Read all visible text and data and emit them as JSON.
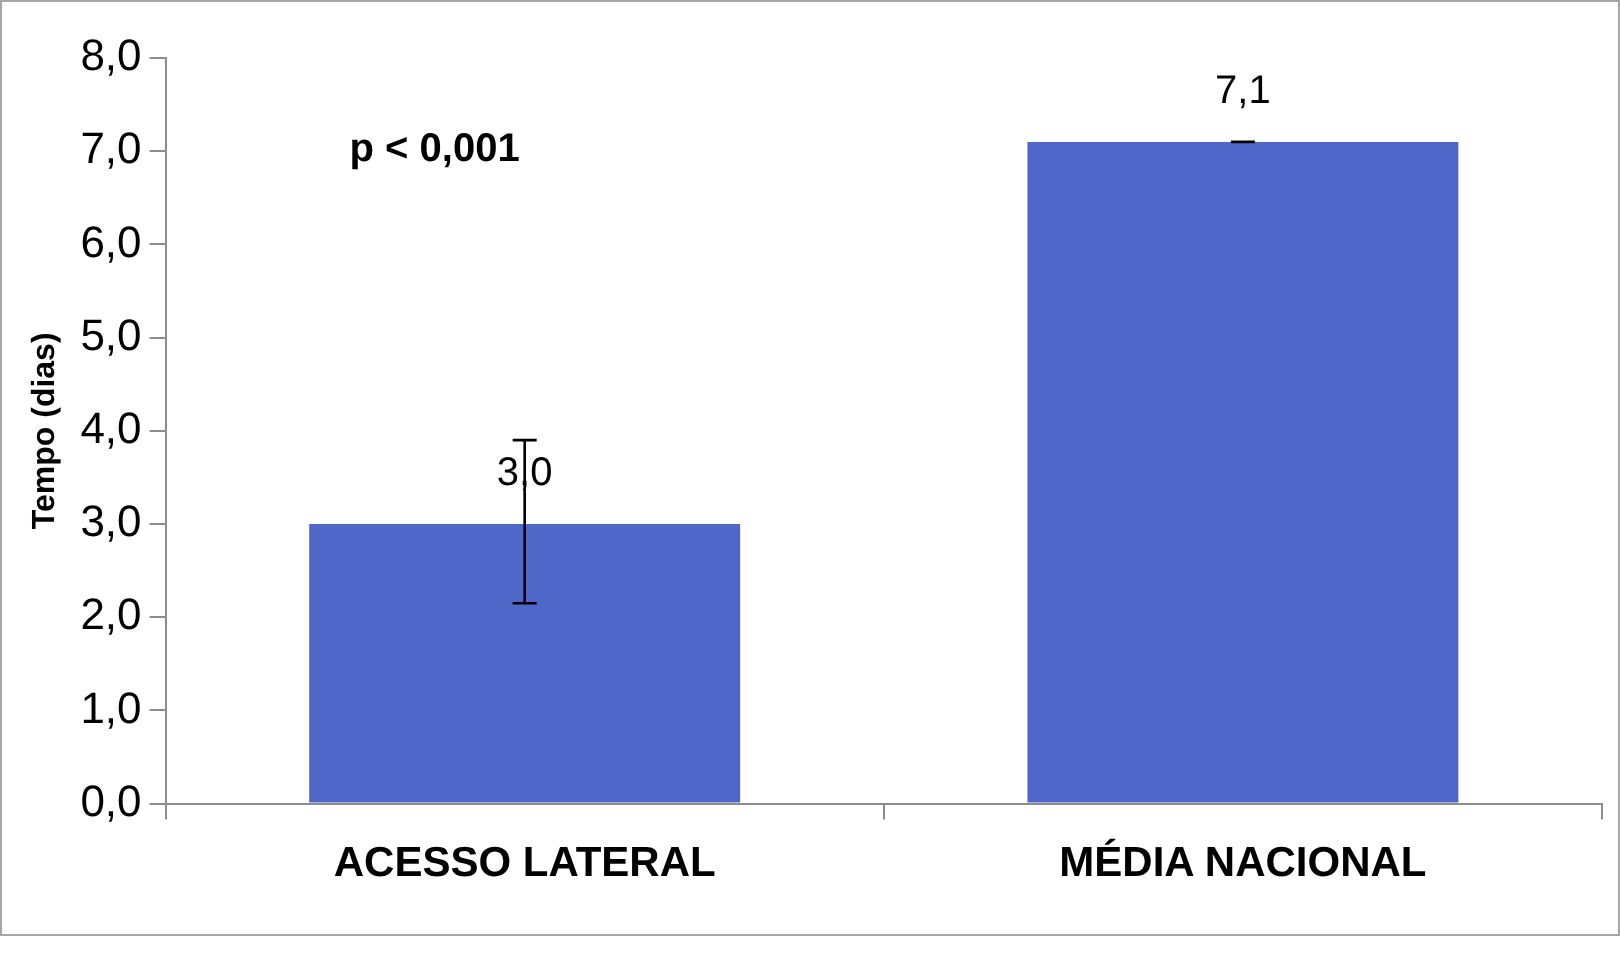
{
  "chart_data": {
    "type": "bar",
    "ylabel": "Tempo (dias)",
    "categories": [
      "ACESSO LATERAL",
      "MÉDIA NACIONAL"
    ],
    "values": [
      3.0,
      7.1
    ],
    "color": "#4f67c8",
    "errors": [
      [
        2.15,
        3.9
      ],
      [
        7.1,
        7.1
      ]
    ],
    "value_labels": [
      "3,0",
      "7,1"
    ],
    "ylim": [
      0,
      8
    ],
    "yticks": [
      {
        "value": 0,
        "label": "0,0"
      },
      {
        "value": 1,
        "label": "1,0"
      },
      {
        "value": 2,
        "label": "2,0"
      },
      {
        "value": 3,
        "label": "3,0"
      },
      {
        "value": 4,
        "label": "4,0"
      },
      {
        "value": 5,
        "label": "5,0"
      },
      {
        "value": 6,
        "label": "6,0"
      },
      {
        "value": 7,
        "label": "7,0"
      },
      {
        "value": 8,
        "label": "8,0"
      }
    ],
    "annotations": [
      "p < 0,001"
    ],
    "grid": false,
    "legend": false
  }
}
